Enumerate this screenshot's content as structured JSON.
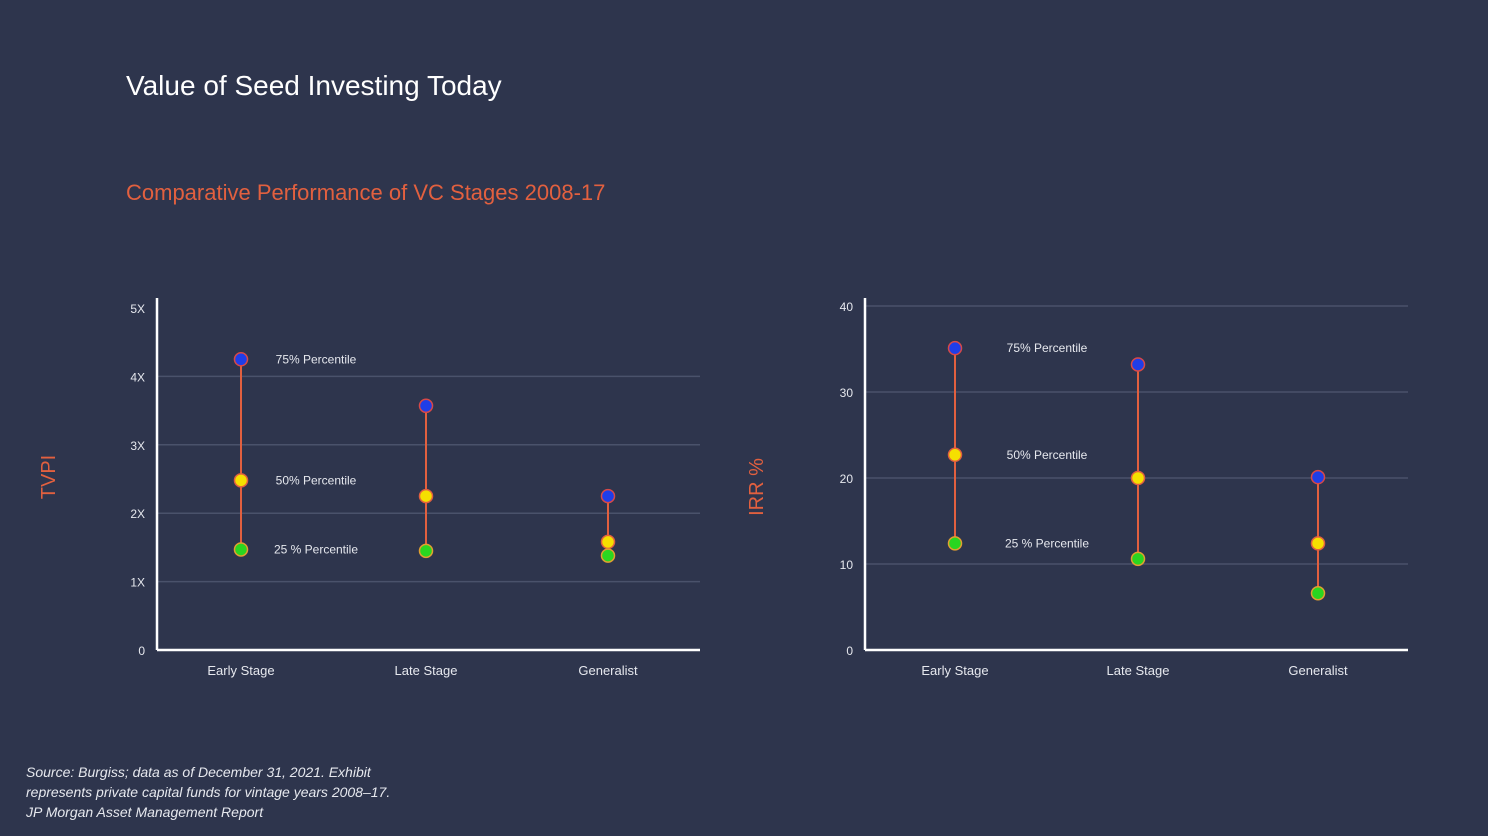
{
  "title": "Value of Seed Investing Today",
  "subtitle": "Comparative Performance of VC Stages 2008-17",
  "colors": {
    "background": "#2e354d",
    "accent": "#e2603f",
    "p75": "#1f3ee8",
    "p50": "#f5e000",
    "p25": "#2ad620",
    "stem": "#e2603f",
    "gridline": "#4a526b",
    "axis": "#ffffff"
  },
  "chart_data": [
    {
      "type": "scatter",
      "ylabel": "TVPI",
      "categories": [
        "Early Stage",
        "Late Stage",
        "Generalist"
      ],
      "y_ticks": [
        0,
        1,
        2,
        3,
        4,
        5
      ],
      "y_tick_labels": [
        "0",
        "1X",
        "2X",
        "3X",
        "4X",
        "5X"
      ],
      "ylim": [
        0,
        5
      ],
      "grid": true,
      "series": [
        {
          "name": "75% Percentile",
          "values": [
            4.25,
            3.57,
            2.25
          ]
        },
        {
          "name": "50% Percentile",
          "values": [
            2.48,
            2.25,
            1.58
          ]
        },
        {
          "name": "25 % Percentile",
          "values": [
            1.47,
            1.45,
            1.38
          ]
        }
      ]
    },
    {
      "type": "scatter",
      "ylabel": "IRR %",
      "categories": [
        "Early Stage",
        "Late Stage",
        "Generalist"
      ],
      "y_ticks": [
        0,
        10,
        20,
        30,
        40
      ],
      "y_tick_labels": [
        "0",
        "10",
        "20",
        "30",
        "40"
      ],
      "ylim": [
        0,
        40
      ],
      "grid": true,
      "series": [
        {
          "name": "75% Percentile",
          "values": [
            35.1,
            33.2,
            20.1
          ]
        },
        {
          "name": "50% Percentile",
          "values": [
            22.7,
            20.0,
            12.4
          ]
        },
        {
          "name": "25 % Percentile",
          "values": [
            12.4,
            10.6,
            6.6
          ]
        }
      ]
    }
  ],
  "source": {
    "line1": "Source: Burgiss; data as of December 31, 2021. Exhibit",
    "line2": "represents private capital funds for vintage years 2008–17.",
    "line3": "JP Morgan Asset Management Report"
  }
}
